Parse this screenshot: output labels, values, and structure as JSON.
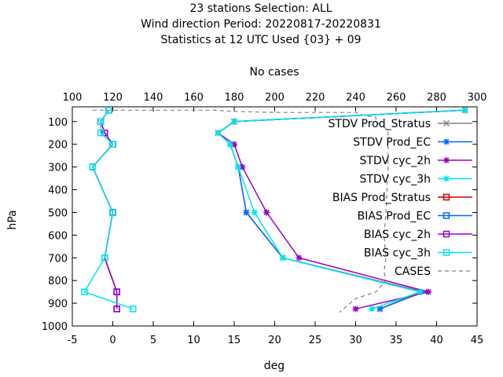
{
  "chart_data": {
    "type": "line",
    "title_lines": [
      "23 stations Selection: ALL",
      "Wind direction  Period: 20220817-20220831",
      "Statistics at 12 UTC  Used {03} + 09"
    ],
    "xlabel": "deg",
    "ylabel": "hPa",
    "x2label": "No cases",
    "xlim": [
      -5,
      45
    ],
    "x2lim": [
      100,
      300
    ],
    "ylim": [
      1000,
      35
    ],
    "xticks": [
      "-5",
      "0",
      "5",
      "10",
      "15",
      "20",
      "25",
      "30",
      "35",
      "40",
      "45"
    ],
    "x2ticks": [
      "100",
      "120",
      "140",
      "160",
      "180",
      "200",
      "220",
      "240",
      "260",
      "280",
      "300"
    ],
    "yticks": [
      "100",
      "200",
      "300",
      "400",
      "500",
      "600",
      "700",
      "800",
      "900",
      "1000"
    ],
    "grid": false,
    "legend_position": "top-right",
    "levels": [
      50,
      100,
      150,
      200,
      300,
      500,
      700,
      850,
      925
    ],
    "series": [
      {
        "name": "STDV Prod_Stratus",
        "color": "#808080",
        "marker": "cross",
        "dash": false,
        "values": [
          43.5,
          15,
          13,
          14.5,
          15.5,
          16.5,
          21,
          38.5,
          33
        ]
      },
      {
        "name": "STDV Prod_EC",
        "color": "#0066ff",
        "marker": "star",
        "dash": false,
        "values": [
          43.5,
          15,
          13,
          14.5,
          15.5,
          16.5,
          21,
          38,
          33
        ]
      },
      {
        "name": "STDV cyc_2h",
        "color": "#9900cc",
        "marker": "star",
        "dash": false,
        "values": [
          43.5,
          15,
          13,
          15,
          16,
          19,
          23,
          39,
          30
        ]
      },
      {
        "name": "STDV cyc_3h",
        "color": "#00e6e6",
        "marker": "star",
        "dash": false,
        "values": [
          43.5,
          15,
          13,
          14.5,
          15.5,
          17.5,
          21,
          38,
          32
        ]
      },
      {
        "name": "BIAS Prod_Stratus",
        "color": "#cc0000",
        "marker": "square",
        "dash": false,
        "values": [
          -0.5,
          -1.5,
          -1,
          0,
          -2.5,
          0,
          -1,
          0.5,
          0.5
        ]
      },
      {
        "name": "BIAS Prod_EC",
        "color": "#0066ff",
        "marker": "square",
        "dash": false,
        "values": [
          -0.5,
          -1.5,
          -1,
          0,
          -2.5,
          0,
          -1,
          0.5,
          0.5
        ]
      },
      {
        "name": "BIAS cyc_2h",
        "color": "#9900cc",
        "marker": "square",
        "dash": false,
        "values": [
          -0.5,
          -1.5,
          -1,
          0,
          -2.5,
          0,
          -1,
          0.5,
          0.5
        ]
      },
      {
        "name": "BIAS cyc_3h",
        "color": "#00e6e6",
        "marker": "square",
        "dash": false,
        "values": [
          -0.5,
          -1.5,
          -1.5,
          0,
          -2.5,
          0,
          -1,
          -3.5,
          2.5
        ]
      },
      {
        "name": "CASES",
        "color": "#808080",
        "marker": "none",
        "dash": true,
        "axis": "x2",
        "x": [
          110,
          170,
          180,
          200,
          240,
          245,
          250,
          250,
          255,
          256,
          256,
          255,
          254,
          255,
          254,
          255,
          250,
          240,
          232
        ],
        "y": [
          50,
          50,
          55,
          60,
          60,
          75,
          80,
          100,
          130,
          150,
          300,
          500,
          600,
          700,
          760,
          800,
          850,
          880,
          940
        ]
      }
    ]
  }
}
